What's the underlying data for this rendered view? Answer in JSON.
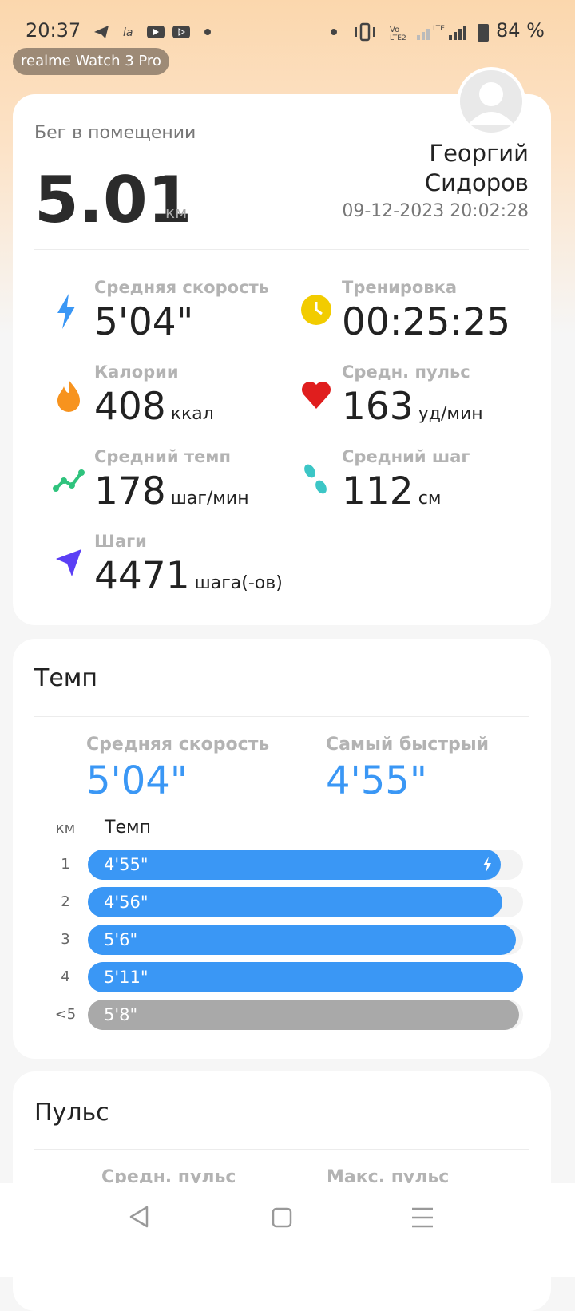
{
  "status_bar": {
    "time": "20:37",
    "battery": "84 %"
  },
  "device_badge": "realme Watch 3 Pro",
  "summary": {
    "activity": "Бег в помещении",
    "distance": "5.01",
    "distance_unit": "км",
    "user_name": "Георгий Сидоров",
    "datetime": "09-12-2023 20:02:28",
    "stats": [
      {
        "label": "Средняя скорость",
        "value": "5'04\""
      },
      {
        "label": "Тренировка",
        "value": "00:25:25"
      },
      {
        "label": "Калории",
        "value": "408",
        "unit": "ккал"
      },
      {
        "label": "Средн. пульс",
        "value": "163",
        "unit": "уд/мин"
      },
      {
        "label": "Средний темп",
        "value": "178",
        "unit": "шаг/мин"
      },
      {
        "label": "Средний шаг",
        "value": "112",
        "unit": "см"
      },
      {
        "label": "Шаги",
        "value": "4471",
        "unit": "шага(-ов)"
      }
    ]
  },
  "pace": {
    "title": "Темп",
    "avg_label": "Средняя скорость",
    "avg_value": "5'04\"",
    "fastest_label": "Самый быстрый",
    "fastest_value": "4'55\"",
    "col_km": "км",
    "col_pace": "Темп",
    "splits": {
      "categories": [
        "1",
        "2",
        "3",
        "4",
        "<5"
      ],
      "values": [
        295,
        296,
        306,
        311,
        308
      ],
      "value_labels": [
        "4'55\"",
        "4'56\"",
        "5'6\"",
        "5'11\"",
        "5'8\""
      ]
    }
  },
  "pulse": {
    "title": "Пульс",
    "avg_label": "Средн. пульс",
    "max_label": "Макс. пульс"
  }
}
